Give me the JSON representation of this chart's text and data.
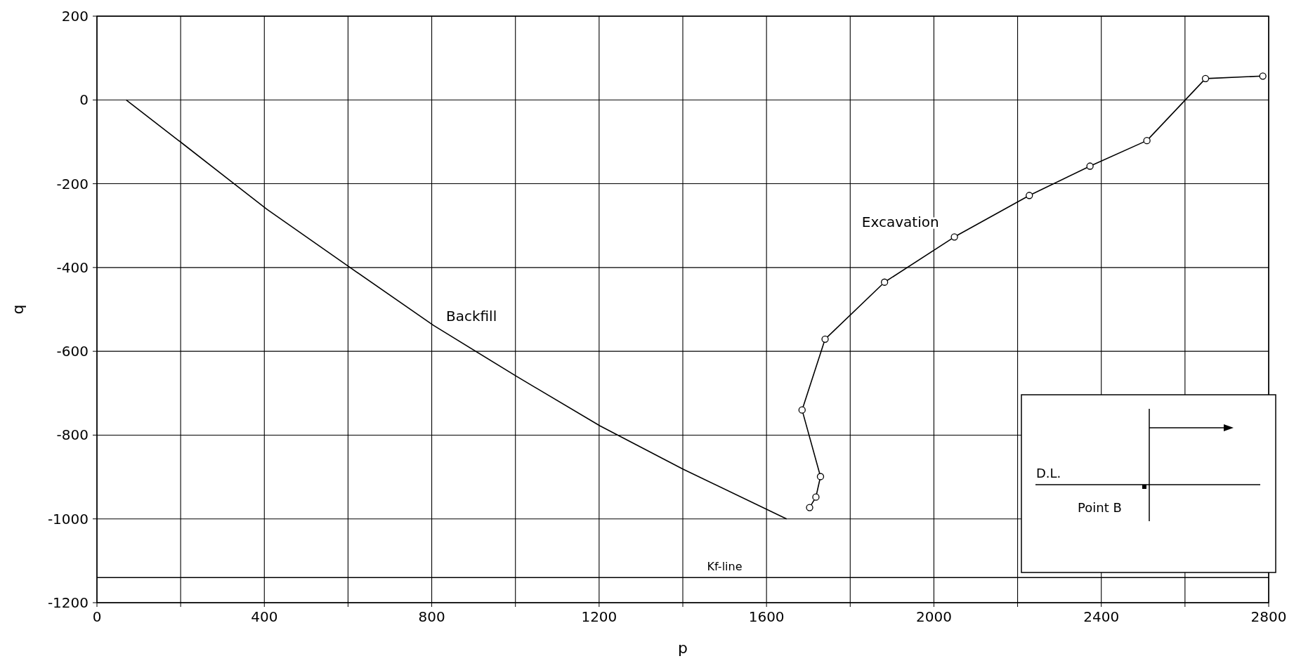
{
  "chart_data": {
    "type": "line",
    "xlabel": "p",
    "ylabel": "q",
    "xlim": [
      0,
      2800
    ],
    "ylim": [
      -1200,
      200
    ],
    "xticks": [
      0,
      {
        "value": 200,
        "label": null
      },
      400,
      {
        "value": 600,
        "label": null
      },
      800,
      {
        "value": 1000,
        "label": null
      },
      1200,
      {
        "value": 1400,
        "label": null
      },
      1600,
      {
        "value": 1800,
        "label": null
      },
      2000,
      {
        "value": 2200,
        "label": null
      },
      2400,
      {
        "value": 2600,
        "label": null
      },
      2800
    ],
    "yticks": [
      -1200,
      -1000,
      -800,
      -600,
      -400,
      -200,
      0,
      200
    ],
    "grid": true,
    "series": [
      {
        "name": "Backfill",
        "color": "#000000",
        "marker": "none",
        "x": [
          70,
          207,
          406,
          605,
          804,
          1003,
          1202,
          1400,
          1648
        ],
        "values": [
          0,
          -106,
          -261,
          -400,
          -538,
          -660,
          -778,
          -881,
          -1000
        ]
      },
      {
        "name": "Excavation",
        "color": "#000000",
        "marker": "circle",
        "x": [
          1703,
          1718,
          1729,
          1685,
          1740,
          1882,
          2049,
          2228,
          2373,
          2509,
          2649,
          2786
        ],
        "values": [
          -973,
          -948,
          -899,
          -740,
          -571,
          -435,
          -327,
          -228,
          -158,
          -97,
          51,
          57
        ]
      }
    ],
    "ref_lines": [
      {
        "axis": "y",
        "value": -1140,
        "label": "Kf-line",
        "color": "#000000"
      }
    ],
    "annotations": [
      "D.L.",
      "Point B"
    ]
  }
}
